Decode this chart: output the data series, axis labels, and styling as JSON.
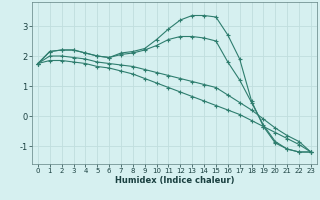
{
  "xlabel": "Humidex (Indice chaleur)",
  "ylabel": "",
  "background_color": "#d6f0f0",
  "grid_color": "#c0dede",
  "line_color": "#2e7d6e",
  "xlim": [
    -0.5,
    23.5
  ],
  "ylim": [
    -1.6,
    3.8
  ],
  "yticks": [
    -1,
    0,
    1,
    2,
    3
  ],
  "xticks": [
    0,
    1,
    2,
    3,
    4,
    5,
    6,
    7,
    8,
    9,
    10,
    11,
    12,
    13,
    14,
    15,
    16,
    17,
    18,
    19,
    20,
    21,
    22,
    23
  ],
  "series": [
    [
      1.75,
      2.15,
      2.2,
      2.2,
      2.1,
      2.0,
      1.95,
      2.1,
      2.15,
      2.25,
      2.55,
      2.9,
      3.2,
      3.35,
      3.35,
      3.3,
      2.7,
      1.9,
      0.5,
      -0.35,
      -0.9,
      -1.1,
      -1.2,
      -1.2
    ],
    [
      1.75,
      2.15,
      2.2,
      2.2,
      2.1,
      2.0,
      1.95,
      2.05,
      2.1,
      2.2,
      2.35,
      2.55,
      2.65,
      2.65,
      2.6,
      2.5,
      1.8,
      1.2,
      0.45,
      -0.3,
      -0.85,
      -1.1,
      -1.2,
      -1.2
    ],
    [
      1.75,
      2.0,
      2.0,
      1.95,
      1.9,
      1.8,
      1.75,
      1.7,
      1.65,
      1.55,
      1.45,
      1.35,
      1.25,
      1.15,
      1.05,
      0.95,
      0.7,
      0.45,
      0.2,
      -0.1,
      -0.4,
      -0.65,
      -0.85,
      -1.2
    ],
    [
      1.75,
      1.85,
      1.85,
      1.8,
      1.75,
      1.65,
      1.6,
      1.5,
      1.4,
      1.25,
      1.1,
      0.95,
      0.8,
      0.65,
      0.5,
      0.35,
      0.2,
      0.05,
      -0.15,
      -0.35,
      -0.55,
      -0.75,
      -0.95,
      -1.2
    ]
  ]
}
